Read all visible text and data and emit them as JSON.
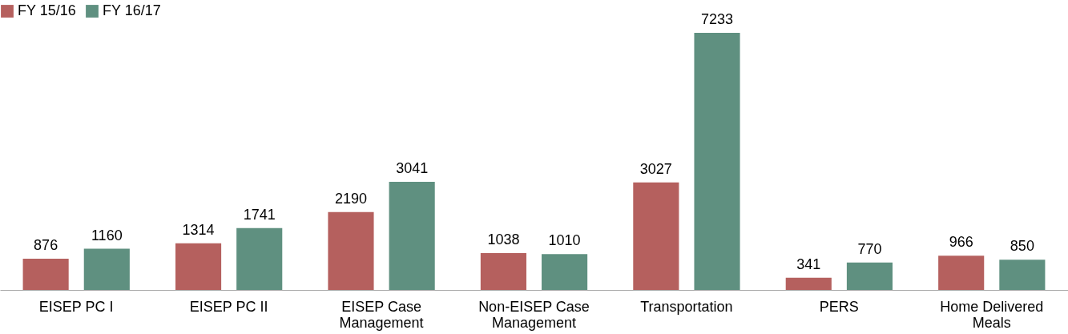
{
  "chart_data": {
    "type": "bar",
    "categories": [
      "EISEP PC I",
      "EISEP PC II",
      "EISEP Case Management",
      "Non-EISEP Case Management",
      "Transportation",
      "PERS",
      "Home Delivered Meals"
    ],
    "series": [
      {
        "name": "FY 15/16",
        "color": "#b5605e",
        "values": [
          876,
          1314,
          2190,
          1038,
          3027,
          341,
          966
        ]
      },
      {
        "name": "FY 16/17",
        "color": "#5f9080",
        "values": [
          1160,
          1741,
          3041,
          1010,
          7233,
          770,
          850
        ]
      }
    ],
    "data_labels": true,
    "legend": "top",
    "grid": false
  }
}
